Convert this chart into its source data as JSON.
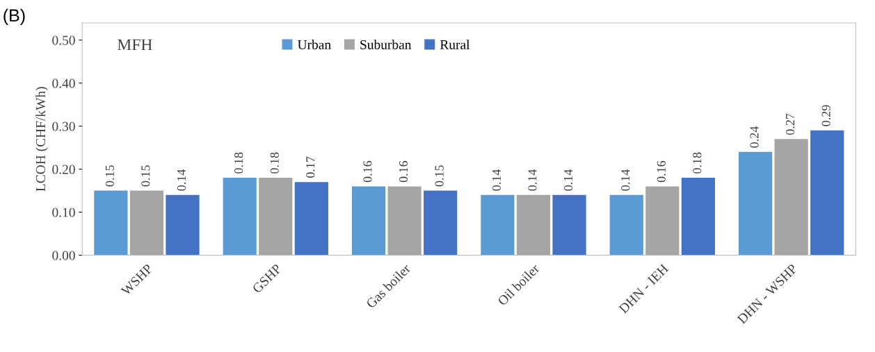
{
  "chart_data": {
    "type": "bar",
    "title": "(B)",
    "ylabel": "LCOH (CHF/kWh)",
    "categories": [
      "WSHP",
      "GSHP",
      "Gas boiler",
      "Oil boiler",
      "DHN - IEH",
      "DHN - WSHP"
    ],
    "series": [
      {
        "name": "Urban",
        "color": "#5b9bd5",
        "values": [
          0.15,
          0.18,
          0.16,
          0.14,
          0.14,
          0.24
        ]
      },
      {
        "name": "Suburban",
        "color": "#a5a5a5",
        "values": [
          0.15,
          0.18,
          0.16,
          0.14,
          0.16,
          0.27
        ]
      },
      {
        "name": "Rural",
        "color": "#4472c4",
        "values": [
          0.14,
          0.17,
          0.15,
          0.14,
          0.18,
          0.29
        ]
      }
    ],
    "ylim": [
      0,
      0.54
    ],
    "yticks": [
      {
        "value": 0,
        "label": "0.00"
      },
      {
        "value": 0.1,
        "label": "0.10"
      },
      {
        "value": 0.2,
        "label": "0.20"
      },
      {
        "value": 0.3,
        "label": "0.30"
      },
      {
        "value": 0.4,
        "label": "0.40"
      },
      {
        "value": 0.5,
        "label": "0.50"
      }
    ],
    "annotations": [
      "MFH"
    ],
    "data_labels": true,
    "legend": "top",
    "grid": false
  }
}
